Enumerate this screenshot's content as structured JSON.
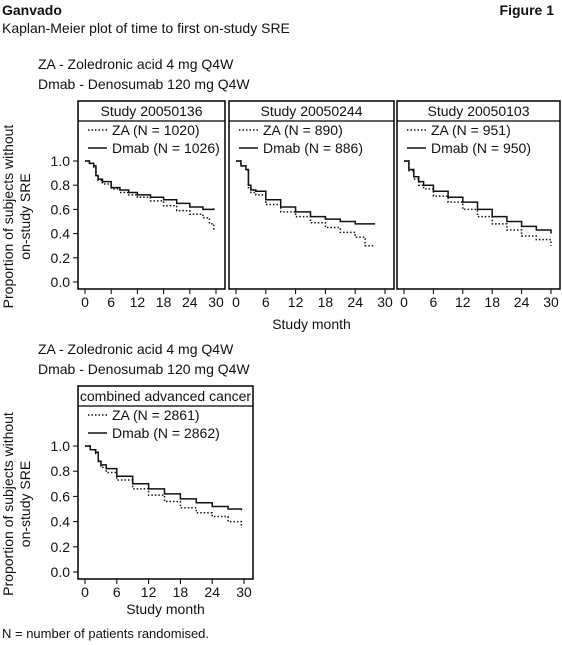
{
  "header": {
    "left": "Ganvado",
    "right": "Figure 1",
    "subtitle": "Kaplan-Meier plot of time to first on-study SRE"
  },
  "definitions_top": {
    "line1": "ZA - Zoledronic acid 4 mg Q4W",
    "line2": "Dmab - Denosumab 120 mg Q4W"
  },
  "definitions_bottom": {
    "line1": "ZA - Zoledronic acid 4 mg Q4W",
    "line2": "Dmab - Denosumab 120 mg Q4W"
  },
  "footnote": "N = number of patients randomised.",
  "colors": {
    "line": "#111111",
    "border": "#000000",
    "background": "#ffffff"
  },
  "chart_data": [
    {
      "type": "line",
      "title": "Study 20050136",
      "ylabel": "Proportion of subjects without on-study SRE",
      "xlabel": "Study month",
      "xlim": [
        0,
        30
      ],
      "ylim": [
        0,
        1
      ],
      "xticks": [
        0,
        6,
        12,
        18,
        24,
        30
      ],
      "yticks": [
        0.0,
        0.2,
        0.4,
        0.6,
        0.8,
        1.0
      ],
      "legend_position": "top-right",
      "series": [
        {
          "name": "ZA (N = 1020)",
          "style": "dotted",
          "x": [
            0,
            1,
            2,
            2.5,
            3,
            4,
            6,
            8,
            10,
            12,
            15,
            18,
            21,
            24,
            27,
            28.5,
            29.5
          ],
          "y": [
            1.0,
            0.98,
            0.95,
            0.88,
            0.84,
            0.81,
            0.77,
            0.74,
            0.72,
            0.7,
            0.67,
            0.63,
            0.59,
            0.56,
            0.53,
            0.48,
            0.43
          ]
        },
        {
          "name": "Dmab (N = 1026)",
          "style": "solid",
          "x": [
            0,
            1,
            2,
            2.5,
            3,
            4,
            6,
            8,
            10,
            12,
            15,
            18,
            21,
            24,
            27,
            29.5
          ],
          "y": [
            1.0,
            0.98,
            0.96,
            0.88,
            0.85,
            0.83,
            0.78,
            0.76,
            0.74,
            0.72,
            0.7,
            0.68,
            0.65,
            0.62,
            0.6,
            0.61
          ]
        }
      ]
    },
    {
      "type": "line",
      "title": "Study 20050244",
      "xlabel": "Study month",
      "xlim": [
        0,
        30
      ],
      "ylim": [
        0,
        1
      ],
      "xticks": [
        0,
        6,
        12,
        18,
        24,
        30
      ],
      "legend_position": "top-right",
      "series": [
        {
          "name": "ZA (N = 890)",
          "style": "dotted",
          "x": [
            0,
            1,
            2,
            2.5,
            3,
            4,
            6,
            9,
            12,
            15,
            18,
            21,
            24,
            26,
            28
          ],
          "y": [
            1.0,
            0.96,
            0.92,
            0.78,
            0.74,
            0.72,
            0.64,
            0.58,
            0.54,
            0.49,
            0.45,
            0.41,
            0.37,
            0.3,
            0.3
          ]
        },
        {
          "name": "Dmab (N = 886)",
          "style": "solid",
          "x": [
            0,
            1,
            2,
            2.5,
            3,
            4,
            6,
            9,
            12,
            15,
            18,
            21,
            24,
            28
          ],
          "y": [
            1.0,
            0.96,
            0.93,
            0.8,
            0.76,
            0.75,
            0.68,
            0.62,
            0.58,
            0.54,
            0.52,
            0.5,
            0.48,
            0.48
          ]
        }
      ]
    },
    {
      "type": "line",
      "title": "Study 20050103",
      "xlabel": "Study month",
      "xlim": [
        0,
        30
      ],
      "ylim": [
        0,
        1
      ],
      "xticks": [
        0,
        6,
        12,
        18,
        24,
        30
      ],
      "legend_position": "top-right",
      "series": [
        {
          "name": "ZA (N = 951)",
          "style": "dotted",
          "x": [
            0,
            1,
            2,
            3,
            4,
            6,
            9,
            12,
            15,
            18,
            21,
            24,
            27,
            30
          ],
          "y": [
            1.0,
            0.92,
            0.85,
            0.8,
            0.77,
            0.71,
            0.66,
            0.6,
            0.54,
            0.48,
            0.43,
            0.38,
            0.35,
            0.3
          ]
        },
        {
          "name": "Dmab (N = 950)",
          "style": "solid",
          "x": [
            0,
            1,
            2,
            3,
            4,
            6,
            9,
            12,
            15,
            18,
            21,
            24,
            27,
            30
          ],
          "y": [
            1.0,
            0.93,
            0.87,
            0.83,
            0.8,
            0.75,
            0.7,
            0.66,
            0.6,
            0.54,
            0.5,
            0.46,
            0.43,
            0.4
          ]
        }
      ]
    },
    {
      "type": "line",
      "title": "combined advanced cancer",
      "ylabel": "Proportion of subjects without on-study SRE",
      "xlabel": "Study month",
      "xlim": [
        0,
        30
      ],
      "ylim": [
        0,
        1
      ],
      "xticks": [
        0,
        6,
        12,
        18,
        24,
        30
      ],
      "yticks": [
        0.0,
        0.2,
        0.4,
        0.6,
        0.8,
        1.0
      ],
      "legend_position": "top-right",
      "series": [
        {
          "name": "ZA (N = 2861)",
          "style": "dotted",
          "x": [
            0,
            1,
            2,
            2.5,
            3,
            4,
            6,
            9,
            12,
            15,
            18,
            21,
            24,
            27,
            29.5
          ],
          "y": [
            1.0,
            0.97,
            0.94,
            0.87,
            0.83,
            0.79,
            0.73,
            0.66,
            0.61,
            0.56,
            0.51,
            0.47,
            0.44,
            0.4,
            0.35
          ]
        },
        {
          "name": "Dmab (N = 2862)",
          "style": "solid",
          "x": [
            0,
            1,
            2,
            2.5,
            3,
            4,
            6,
            9,
            12,
            15,
            18,
            21,
            24,
            27,
            29.5
          ],
          "y": [
            1.0,
            0.97,
            0.95,
            0.88,
            0.85,
            0.82,
            0.76,
            0.7,
            0.66,
            0.62,
            0.58,
            0.55,
            0.52,
            0.5,
            0.49
          ]
        }
      ]
    }
  ]
}
